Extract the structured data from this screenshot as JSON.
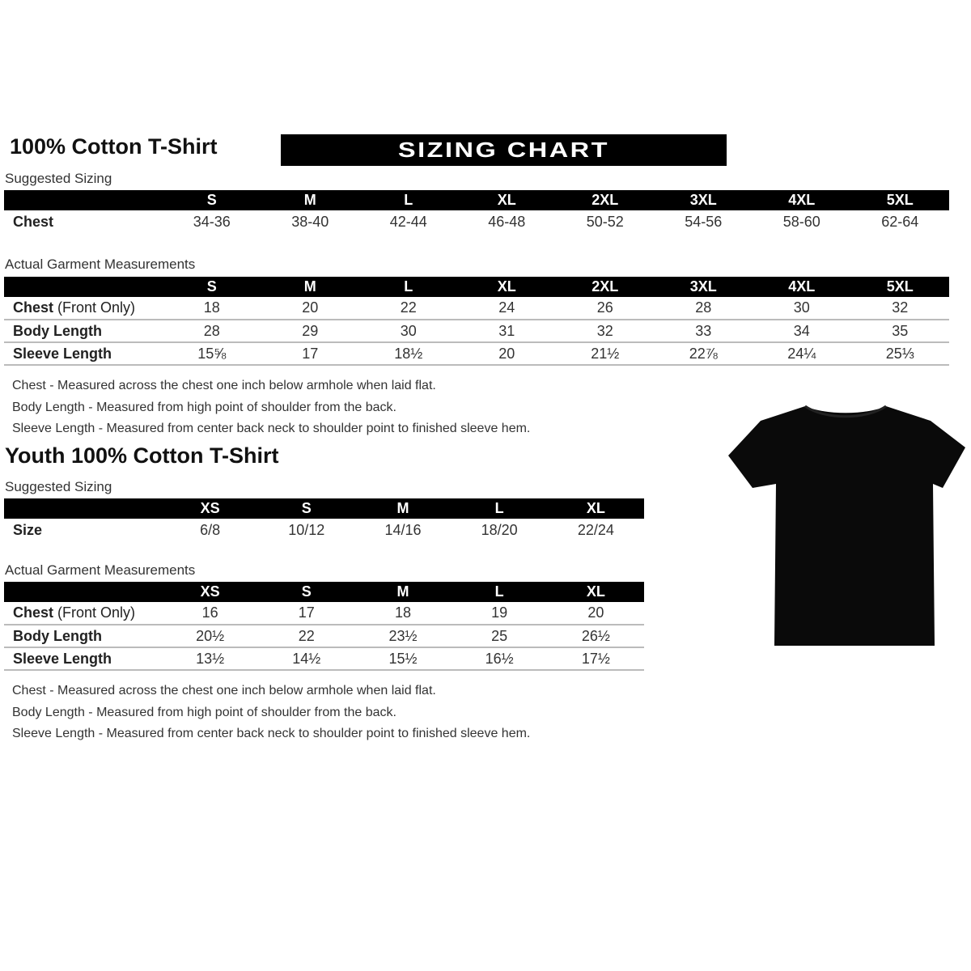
{
  "adult": {
    "title": "100% Cotton T-Shirt",
    "banner": "SIZING CHART",
    "suggested": {
      "label": "Suggested Sizing",
      "sizes": [
        "S",
        "M",
        "L",
        "XL",
        "2XL",
        "3XL",
        "4XL",
        "5XL"
      ],
      "rows": [
        {
          "label": "Chest",
          "values": [
            "34-36",
            "38-40",
            "42-44",
            "46-48",
            "50-52",
            "54-56",
            "58-60",
            "62-64"
          ]
        }
      ]
    },
    "actual": {
      "label": "Actual Garment Measurements",
      "sizes": [
        "S",
        "M",
        "L",
        "XL",
        "2XL",
        "3XL",
        "4XL",
        "5XL"
      ],
      "rows": [
        {
          "label": "Chest",
          "label_note": "(Front Only)",
          "values": [
            "18",
            "20",
            "22",
            "24",
            "26",
            "28",
            "30",
            "32"
          ]
        },
        {
          "label": "Body Length",
          "values": [
            "28",
            "29",
            "30",
            "31",
            "32",
            "33",
            "34",
            "35"
          ]
        },
        {
          "label": "Sleeve Length",
          "values": [
            "15⅝",
            "17",
            "18½",
            "20",
            "21½",
            "22⅞",
            "24¼",
            "25⅓"
          ]
        }
      ]
    },
    "notes": [
      "Chest - Measured across the chest one inch below armhole when laid flat.",
      "Body Length - Measured from high point of shoulder from the back.",
      "Sleeve Length - Measured from center back neck to shoulder point to finished sleeve hem."
    ]
  },
  "youth": {
    "title": "Youth 100% Cotton T-Shirt",
    "suggested": {
      "label": "Suggested Sizing",
      "sizes": [
        "XS",
        "S",
        "M",
        "L",
        "XL"
      ],
      "rows": [
        {
          "label": "Size",
          "values": [
            "6/8",
            "10/12",
            "14/16",
            "18/20",
            "22/24"
          ]
        }
      ]
    },
    "actual": {
      "label": "Actual Garment Measurements",
      "sizes": [
        "XS",
        "S",
        "M",
        "L",
        "XL"
      ],
      "rows": [
        {
          "label": "Chest",
          "label_note": "(Front Only)",
          "values": [
            "16",
            "17",
            "18",
            "19",
            "20"
          ]
        },
        {
          "label": "Body Length",
          "values": [
            "20½",
            "22",
            "23½",
            "25",
            "26½"
          ]
        },
        {
          "label": "Sleeve Length",
          "values": [
            "13½",
            "14½",
            "15½",
            "16½",
            "17½"
          ]
        }
      ]
    },
    "notes": [
      "Chest - Measured across the chest one inch below armhole when laid flat.",
      "Body Length - Measured from high point of shoulder from the back.",
      "Sleeve Length - Measured from center back neck to shoulder point to finished sleeve hem."
    ]
  },
  "image": {
    "icon": "black-tshirt-icon",
    "color": "#0a0a0a"
  }
}
